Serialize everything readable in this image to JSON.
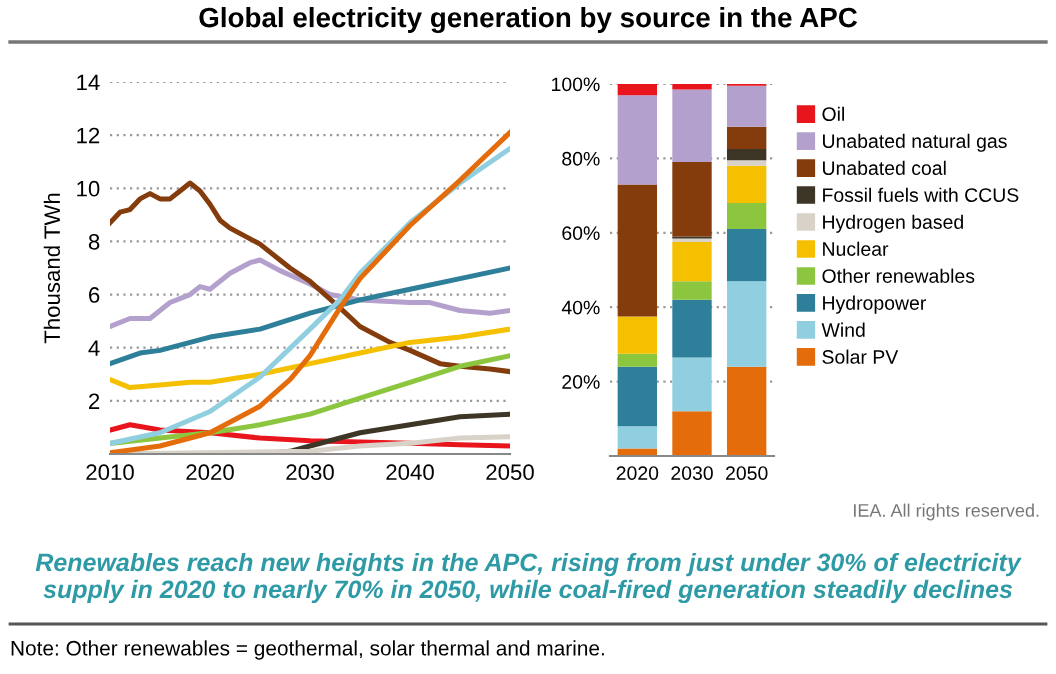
{
  "chart_data": [
    {
      "type": "line",
      "title": "Global electricity generation by source in the APC",
      "ylabel": "Thousand TWh",
      "xlim": [
        2010,
        2050
      ],
      "xticks": [
        2010,
        2020,
        2030,
        2040,
        2050
      ],
      "ylim": [
        0,
        14
      ],
      "yticks": [
        {
          "value": 0,
          "label": null
        },
        2,
        4,
        6,
        8,
        10,
        12,
        14
      ],
      "grid": "y",
      "line_style": "solid",
      "marker": "none",
      "series": [
        {
          "color": "#e8161c",
          "x": [
            2010,
            2012,
            2015,
            2020,
            2025,
            2030,
            2035,
            2040,
            2045,
            2050
          ],
          "values": [
            0.9,
            1.1,
            0.9,
            0.8,
            0.6,
            0.5,
            0.45,
            0.4,
            0.35,
            0.3
          ]
        },
        {
          "color": "#b4a0cc",
          "x": [
            2010,
            2012,
            2014,
            2016,
            2018,
            2019,
            2020,
            2022,
            2024,
            2025,
            2027,
            2030,
            2032,
            2035,
            2040,
            2042,
            2045,
            2048,
            2050
          ],
          "values": [
            4.8,
            5.1,
            5.1,
            5.7,
            6.0,
            6.3,
            6.2,
            6.8,
            7.2,
            7.3,
            6.9,
            6.4,
            6.0,
            5.8,
            5.7,
            5.7,
            5.4,
            5.3,
            5.4
          ]
        },
        {
          "color": "#843c0c",
          "x": [
            2010,
            2011,
            2012,
            2013,
            2014,
            2015,
            2016,
            2017,
            2018,
            2019,
            2020,
            2021,
            2022,
            2025,
            2028,
            2030,
            2033,
            2035,
            2038,
            2040,
            2043,
            2045,
            2048,
            2050
          ],
          "values": [
            8.7,
            9.1,
            9.2,
            9.6,
            9.8,
            9.6,
            9.6,
            9.9,
            10.2,
            9.9,
            9.4,
            8.8,
            8.5,
            7.9,
            7.0,
            6.5,
            5.5,
            4.8,
            4.2,
            3.9,
            3.4,
            3.3,
            3.2,
            3.1
          ]
        },
        {
          "color": "#3d3526",
          "x": [
            2010,
            2025,
            2028,
            2030,
            2035,
            2040,
            2045,
            2050
          ],
          "values": [
            0,
            0,
            0.1,
            0.3,
            0.8,
            1.1,
            1.4,
            1.5
          ]
        },
        {
          "color": "#d9d2c8",
          "x": [
            2010,
            2030,
            2035,
            2040,
            2045,
            2050
          ],
          "values": [
            0,
            0.1,
            0.3,
            0.4,
            0.6,
            0.65
          ]
        },
        {
          "color": "#f5c000",
          "x": [
            2010,
            2012,
            2015,
            2018,
            2020,
            2025,
            2030,
            2035,
            2040,
            2045,
            2050
          ],
          "values": [
            2.8,
            2.5,
            2.6,
            2.7,
            2.7,
            3.0,
            3.4,
            3.8,
            4.2,
            4.4,
            4.7
          ]
        },
        {
          "color": "#8cc63f",
          "x": [
            2010,
            2015,
            2020,
            2025,
            2030,
            2035,
            2040,
            2045,
            2050
          ],
          "values": [
            0.4,
            0.6,
            0.8,
            1.1,
            1.5,
            2.1,
            2.7,
            3.3,
            3.7
          ]
        },
        {
          "color": "#2e7f99",
          "x": [
            2010,
            2013,
            2015,
            2020,
            2025,
            2030,
            2035,
            2040,
            2045,
            2050
          ],
          "values": [
            3.4,
            3.8,
            3.9,
            4.4,
            4.7,
            5.3,
            5.8,
            6.2,
            6.6,
            7.0
          ]
        },
        {
          "color": "#8fcfe0",
          "x": [
            2010,
            2015,
            2020,
            2025,
            2030,
            2033,
            2035,
            2040,
            2045,
            2050
          ],
          "values": [
            0.4,
            0.8,
            1.6,
            2.9,
            4.7,
            5.8,
            6.8,
            8.7,
            10.2,
            11.5
          ]
        },
        {
          "color": "#e46c0a",
          "x": [
            2010,
            2015,
            2020,
            2025,
            2028,
            2030,
            2033,
            2035,
            2040,
            2045,
            2050
          ],
          "values": [
            0.05,
            0.3,
            0.8,
            1.8,
            2.8,
            3.7,
            5.5,
            6.6,
            8.6,
            10.3,
            12.1
          ]
        }
      ],
      "annotations": [
        "IEA. All rights reserved.",
        "Renewables reach new heights in the APC, rising from just under 30% of electricity supply in 2020 to nearly 70% in 2050, while coal-fired generation steadily declines",
        "Note: Other renewables = geothermal, solar thermal and marine."
      ]
    },
    {
      "type": "bar",
      "stacked": true,
      "categories": [
        "2020",
        "2030",
        "2050"
      ],
      "ylim": [
        0,
        100
      ],
      "yticks": [
        {
          "value": 0,
          "label": null
        },
        {
          "value": 20,
          "label": "20%"
        },
        {
          "value": 40,
          "label": "40%"
        },
        {
          "value": 60,
          "label": "60%"
        },
        {
          "value": 80,
          "label": "80%"
        },
        {
          "value": 100,
          "label": "100%"
        }
      ],
      "grid": "y",
      "legend": "right",
      "series": [
        {
          "name": "Solar PV",
          "color": "#e46c0a",
          "values": [
            2,
            12,
            24
          ]
        },
        {
          "name": "Wind",
          "color": "#8fcfe0",
          "values": [
            6,
            14.5,
            23
          ]
        },
        {
          "name": "Hydropower",
          "color": "#2e7f99",
          "values": [
            16,
            15.5,
            14
          ]
        },
        {
          "name": "Other renewables",
          "color": "#8cc63f",
          "values": [
            3.5,
            5,
            7
          ]
        },
        {
          "name": "Nuclear",
          "color": "#f5c000",
          "values": [
            10,
            10.5,
            10
          ]
        },
        {
          "name": "Hydrogen based",
          "color": "#d9d2c8",
          "values": [
            0,
            1,
            1.5
          ]
        },
        {
          "name": "Fossil fuels with CCUS",
          "color": "#3d3526",
          "values": [
            0,
            0.5,
            3
          ]
        },
        {
          "name": "Unabated coal",
          "color": "#843c0c",
          "values": [
            35.5,
            20,
            6
          ]
        },
        {
          "name": "Unabated natural gas",
          "color": "#b4a0cc",
          "values": [
            24,
            19.5,
            11
          ]
        },
        {
          "name": "Oil",
          "color": "#e8161c",
          "values": [
            3,
            1.5,
            0.5
          ]
        }
      ]
    }
  ]
}
